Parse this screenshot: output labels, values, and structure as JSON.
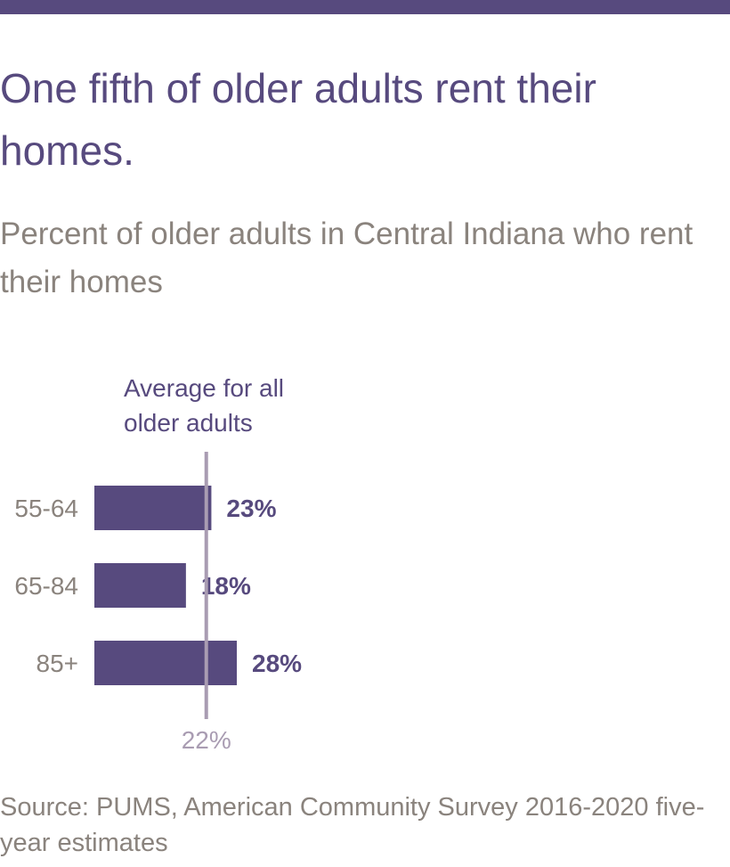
{
  "header": {
    "title": "One fifth of older adults rent their homes.",
    "subtitle": "Percent of older adults in Central Indiana who rent their homes"
  },
  "chart_data": {
    "type": "bar",
    "orientation": "horizontal",
    "categories": [
      "55-64",
      "65-84",
      "85+"
    ],
    "values": [
      23,
      18,
      28
    ],
    "value_labels": [
      "23%",
      "18%",
      "28%"
    ],
    "reference_line": {
      "value": 22,
      "label": "22%",
      "annotation_lines": [
        "Average for all",
        "older adults"
      ]
    },
    "colors": {
      "bar": "#574a7e",
      "reference_line": "#a99cb2",
      "category_label": "#8a837d",
      "value_label": "#574a7e"
    }
  },
  "footer": {
    "source": "Source: PUMS, American Community Survey 2016-2020 five-year estimates"
  },
  "colors": {
    "accent": "#574a7e",
    "muted_text": "#8a837d"
  }
}
